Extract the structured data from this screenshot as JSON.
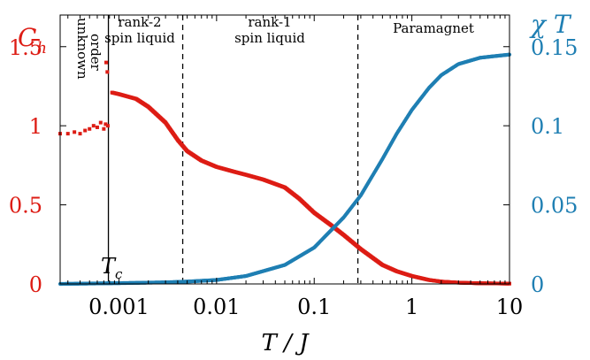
{
  "colors": {
    "ch": "#dd1c14",
    "chi": "#1f7fb3",
    "axis": "#000000"
  },
  "chart_data": {
    "type": "scatter",
    "xscale": "log",
    "xlim": [
      0.00025,
      10
    ],
    "xlabel": {
      "main": "T / J"
    },
    "xticks": [
      {
        "v": 0.001,
        "label": "0.001"
      },
      {
        "v": 0.01,
        "label": "0.01"
      },
      {
        "v": 0.1,
        "label": "0.1"
      },
      {
        "v": 1,
        "label": "1"
      },
      {
        "v": 10,
        "label": "10"
      }
    ],
    "y_left": {
      "label": {
        "main": "C",
        "sub": "h"
      },
      "lim": [
        0,
        1.7
      ],
      "ticks": [
        {
          "v": 0,
          "label": "0"
        },
        {
          "v": 0.5,
          "label": "0.5"
        },
        {
          "v": 1,
          "label": "1"
        },
        {
          "v": 1.5,
          "label": "1.5"
        }
      ]
    },
    "y_right": {
      "label": "χ T",
      "lim": [
        0,
        0.17
      ],
      "ticks": [
        {
          "v": 0,
          "label": "0"
        },
        {
          "v": 0.05,
          "label": "0.05"
        },
        {
          "v": 0.1,
          "label": "0.1"
        },
        {
          "v": 0.15,
          "label": "0.15"
        }
      ]
    },
    "regions": [
      {
        "label_lines": [
          "unknown",
          "order"
        ],
        "vertical": true
      },
      {
        "label_lines": [
          "rank-2",
          "spin liquid"
        ]
      },
      {
        "label_lines": [
          "rank-1",
          "spin liquid"
        ]
      },
      {
        "label_lines": [
          "Paramagnet"
        ]
      }
    ],
    "boundaries": [
      {
        "x": 0.00078,
        "style": "solid",
        "label": {
          "main": "T",
          "sub": "c"
        }
      },
      {
        "x": 0.0045,
        "style": "dashed"
      },
      {
        "x": 0.28,
        "style": "dashed"
      }
    ],
    "series": [
      {
        "axis": "left",
        "points": [
          [
            0.00025,
            0.95
          ],
          [
            0.0003,
            0.95
          ],
          [
            0.00035,
            0.96
          ],
          [
            0.0004,
            0.95
          ],
          [
            0.00045,
            0.97
          ],
          [
            0.0005,
            0.98
          ],
          [
            0.00055,
            1.0
          ],
          [
            0.0006,
            0.99
          ],
          [
            0.00065,
            1.02
          ],
          [
            0.0007,
            0.98
          ],
          [
            0.00073,
            1.01
          ],
          [
            0.00074,
            1.4
          ],
          [
            0.00076,
            1.34
          ],
          [
            0.00077,
            1.0
          ],
          [
            0.00085,
            1.21
          ],
          [
            0.001,
            1.2
          ],
          [
            0.0015,
            1.17
          ],
          [
            0.002,
            1.12
          ],
          [
            0.003,
            1.02
          ],
          [
            0.004,
            0.91
          ],
          [
            0.005,
            0.84
          ],
          [
            0.007,
            0.78
          ],
          [
            0.01,
            0.74
          ],
          [
            0.015,
            0.71
          ],
          [
            0.02,
            0.69
          ],
          [
            0.03,
            0.66
          ],
          [
            0.05,
            0.61
          ],
          [
            0.07,
            0.54
          ],
          [
            0.1,
            0.45
          ],
          [
            0.15,
            0.37
          ],
          [
            0.2,
            0.31
          ],
          [
            0.3,
            0.22
          ],
          [
            0.5,
            0.12
          ],
          [
            0.7,
            0.08
          ],
          [
            1,
            0.05
          ],
          [
            1.5,
            0.025
          ],
          [
            2,
            0.015
          ],
          [
            3,
            0.008
          ],
          [
            5,
            0.004
          ],
          [
            10,
            0.002
          ]
        ]
      },
      {
        "axis": "right",
        "points": [
          [
            0.00025,
            0
          ],
          [
            0.001,
            0.0005
          ],
          [
            0.003,
            0.001
          ],
          [
            0.005,
            0.0015
          ],
          [
            0.01,
            0.0025
          ],
          [
            0.02,
            0.005
          ],
          [
            0.05,
            0.012
          ],
          [
            0.1,
            0.023
          ],
          [
            0.2,
            0.042
          ],
          [
            0.3,
            0.056
          ],
          [
            0.5,
            0.079
          ],
          [
            0.7,
            0.095
          ],
          [
            1,
            0.11
          ],
          [
            1.5,
            0.124
          ],
          [
            2,
            0.132
          ],
          [
            3,
            0.139
          ],
          [
            5,
            0.143
          ],
          [
            7,
            0.144
          ],
          [
            10,
            0.145
          ]
        ]
      }
    ]
  }
}
